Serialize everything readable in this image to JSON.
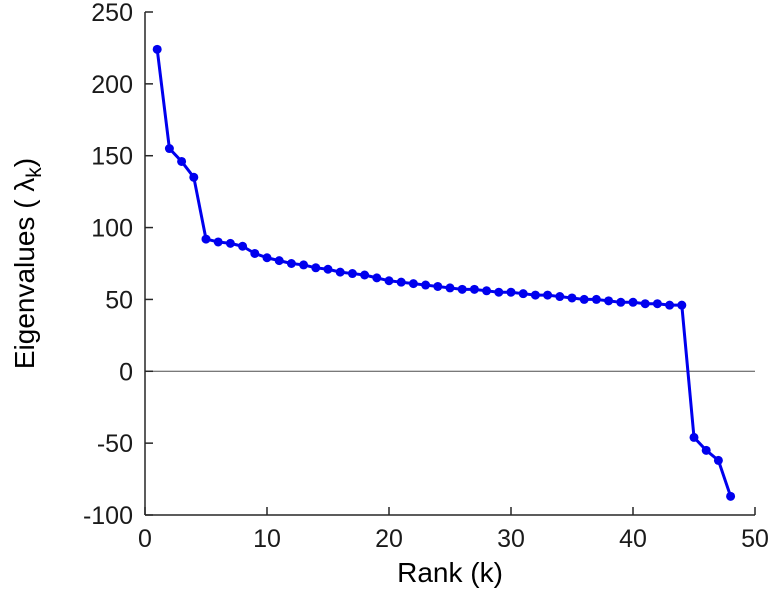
{
  "figure": {
    "background": "#ffffff",
    "axis_color": "#262626",
    "zero_line_color": "#4d4d4d"
  },
  "chart_data": {
    "type": "line",
    "title": "",
    "xlabel": "Rank (k)",
    "ylabel": "Eigenvalues ( λ_k )",
    "ylabel_parts": {
      "prefix": "Eigenvalues ( λ",
      "sub": "k",
      "suffix": ")"
    },
    "xlim": [
      0,
      50
    ],
    "ylim": [
      -100,
      250
    ],
    "xticks": [
      0,
      10,
      20,
      30,
      40,
      50
    ],
    "yticks": [
      -100,
      -50,
      0,
      50,
      100,
      150,
      200,
      250
    ],
    "grid": false,
    "legend": null,
    "zero_line": true,
    "line_color": "#0000EE",
    "marker": "circle",
    "x": [
      1,
      2,
      3,
      4,
      5,
      6,
      7,
      8,
      9,
      10,
      11,
      12,
      13,
      14,
      15,
      16,
      17,
      18,
      19,
      20,
      21,
      22,
      23,
      24,
      25,
      26,
      27,
      28,
      29,
      30,
      31,
      32,
      33,
      34,
      35,
      36,
      37,
      38,
      39,
      40,
      41,
      42,
      43,
      44,
      45,
      46,
      47,
      48
    ],
    "y": [
      224,
      155,
      146,
      135,
      92,
      90,
      89,
      87,
      82,
      79,
      77,
      75,
      74,
      72,
      71,
      69,
      68,
      67,
      65,
      63,
      62,
      61,
      60,
      59,
      58,
      57,
      57,
      56,
      55,
      55,
      54,
      53,
      53,
      52,
      51,
      50,
      50,
      49,
      48,
      48,
      47,
      47,
      46,
      46,
      -46,
      -55,
      -62,
      -87
    ]
  }
}
